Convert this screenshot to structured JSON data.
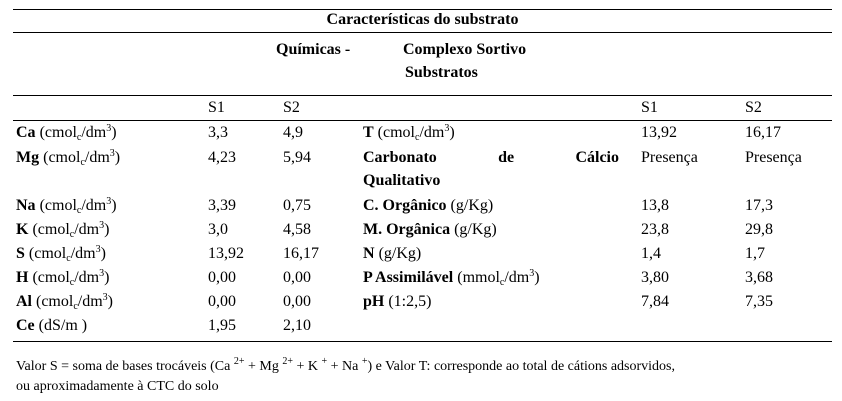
{
  "table": {
    "title": "Características do substrato",
    "subtitle_left": "Químicas -",
    "subtitle_right": "Complexo Sortivo",
    "subtitle_line2": "Substratos",
    "col_headers": {
      "s1": "S1",
      "s2": "S2"
    },
    "left_rows": [
      {
        "name": "Ca",
        "unit_pre": "(cmol",
        "unit_sub": "c",
        "unit_mid": "/dm",
        "unit_sup": "3",
        "unit_post": ")",
        "s1": "3,3",
        "s2": "4,9"
      },
      {
        "name": "Mg",
        "unit_pre": "(cmol",
        "unit_sub": "c",
        "unit_mid": "/dm",
        "unit_sup": "3",
        "unit_post": ")",
        "s1": "4,23",
        "s2": "5,94"
      },
      {
        "name": "Na",
        "unit_pre": "(cmol",
        "unit_sub": "c",
        "unit_mid": "/dm",
        "unit_sup": "3",
        "unit_post": ")",
        "s1": "3,39",
        "s2": "0,75"
      },
      {
        "name": "K",
        "unit_pre": "(cmol",
        "unit_sub": "c",
        "unit_mid": "/dm",
        "unit_sup": "3",
        "unit_post": ")",
        "s1": "3,0",
        "s2": "4,58"
      },
      {
        "name": "S",
        "unit_pre": "(cmol",
        "unit_sub": "c",
        "unit_mid": "/dm",
        "unit_sup": "3",
        "unit_post": ")",
        "s1": "13,92",
        "s2": "16,17"
      },
      {
        "name": "H",
        "unit_pre": "(cmol",
        "unit_sub": "c",
        "unit_mid": "/dm",
        "unit_sup": "3",
        "unit_post": ")",
        "s1": "0,00",
        "s2": "0,00"
      },
      {
        "name": "Al",
        "unit_pre": "(cmol",
        "unit_sub": "c",
        "unit_mid": "/dm",
        "unit_sup": "3",
        "unit_post": ")",
        "s1": "0,00",
        "s2": "0,00"
      },
      {
        "name": "Ce",
        "unit_pre": "(dS/m )",
        "unit_sub": "",
        "unit_mid": "",
        "unit_sup": "",
        "unit_post": "",
        "s1": "1,95",
        "s2": "2,10"
      }
    ],
    "right_rows": [
      {
        "name": "T",
        "unit_pre": "(cmol",
        "unit_sub": "c",
        "unit_mid": "/dm",
        "unit_sup": "3",
        "unit_post": ")",
        "s1": "13,92",
        "s2": "16,17"
      },
      {
        "name_words": [
          "Carbonato",
          "de",
          "Cálcio"
        ],
        "name_line2": "Qualitativo",
        "s1": "Presença",
        "s2": "Presença"
      },
      {
        "name": "C. Orgânico",
        "unit_pre": "(g/Kg)",
        "s1": "13,8",
        "s2": "17,3"
      },
      {
        "name": "M. Orgânica",
        "unit_pre": "(g/Kg)",
        "s1": "23,8",
        "s2": "29,8"
      },
      {
        "name": "N",
        "unit_pre": "(g/Kg)",
        "s1": "1,4",
        "s2": "1,7"
      },
      {
        "name": "P Assimilável",
        "unit_pre": "(mmol",
        "unit_sub": "c",
        "unit_mid": "/dm",
        "unit_sup": "3",
        "unit_post": ")",
        "s1": "3,80",
        "s2": "3,68"
      },
      {
        "name": "pH",
        "unit_pre": "(1:2,5)",
        "s1": "7,84",
        "s2": "7,35"
      }
    ]
  },
  "footnote": {
    "line1_a": "Valor S = soma de bases trocáveis (Ca",
    "sup_ca": "2+",
    "mg_text": " + Mg",
    "sup_mg": "2+",
    "k_text": " + K",
    "sup_k": "+",
    "na_text": " + Na",
    "sup_na": "+",
    "line1_b": ") e Valor T: corresponde ao total de cátions adsorvidos,",
    "line2": "ou aproximadamente à CTC do solo"
  }
}
